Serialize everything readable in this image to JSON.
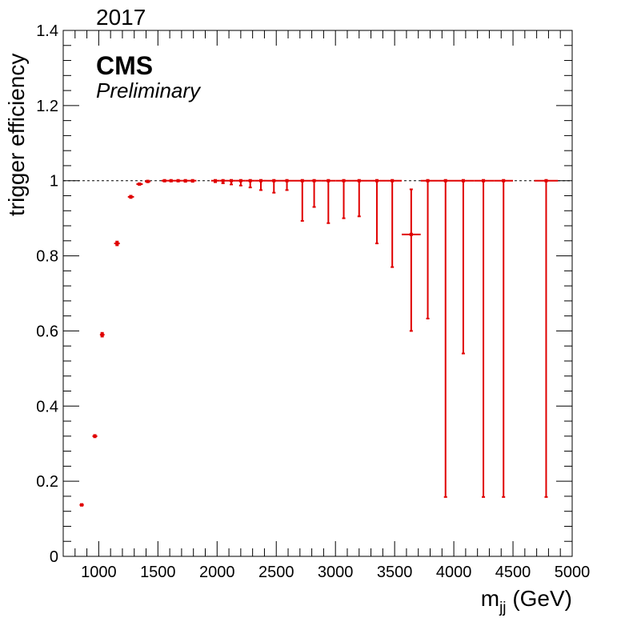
{
  "chart_data": {
    "type": "scatter",
    "title": "",
    "annotations": {
      "year": "2017",
      "experiment": "CMS",
      "status": "Preliminary"
    },
    "xlabel": "m",
    "xlabel_subscript": "jj",
    "xlabel_unit": "(GeV)",
    "ylabel": "trigger efficiency",
    "xlim": [
      700,
      5000
    ],
    "ylim": [
      0,
      1.4
    ],
    "xticks": [
      "1000",
      "1500",
      "2000",
      "2500",
      "3000",
      "3500",
      "4000",
      "4500",
      "5000"
    ],
    "yticks": [
      "0",
      "0.2",
      "0.4",
      "0.6",
      "0.8",
      "1",
      "1.2",
      "1.4"
    ],
    "reference_line": {
      "y": 1,
      "style": "dotted"
    },
    "colors": {
      "series": "#e00000",
      "reference": "#000000"
    },
    "series": [
      {
        "points": [
          {
            "x": 856,
            "xlo": 838,
            "xhi": 874,
            "y": 0.137,
            "ylo": 0.135,
            "yhi": 0.139
          },
          {
            "x": 967,
            "xlo": 947,
            "xhi": 988,
            "y": 0.32,
            "ylo": 0.317,
            "yhi": 0.323
          },
          {
            "x": 1029,
            "xlo": 1010,
            "xhi": 1049,
            "y": 0.59,
            "ylo": 0.585,
            "yhi": 0.595
          },
          {
            "x": 1155,
            "xlo": 1130,
            "xhi": 1178,
            "y": 0.833,
            "ylo": 0.828,
            "yhi": 0.838
          },
          {
            "x": 1271,
            "xlo": 1246,
            "xhi": 1298,
            "y": 0.957,
            "ylo": 0.954,
            "yhi": 0.96
          },
          {
            "x": 1344,
            "xlo": 1318,
            "xhi": 1372,
            "y": 0.991,
            "ylo": 0.989,
            "yhi": 0.993
          },
          {
            "x": 1414,
            "xlo": 1390,
            "xhi": 1438,
            "y": 0.998,
            "ylo": 0.996,
            "yhi": 1.0
          },
          {
            "x": 1556,
            "xlo": 1530,
            "xhi": 1582,
            "y": 1.0,
            "ylo": 0.998,
            "yhi": 1.0
          },
          {
            "x": 1611,
            "xlo": 1582,
            "xhi": 1640,
            "y": 1.0,
            "ylo": 0.998,
            "yhi": 1.0
          },
          {
            "x": 1671,
            "xlo": 1640,
            "xhi": 1702,
            "y": 1.0,
            "ylo": 0.998,
            "yhi": 1.0
          },
          {
            "x": 1732,
            "xlo": 1702,
            "xhi": 1762,
            "y": 1.0,
            "ylo": 0.997,
            "yhi": 1.0
          },
          {
            "x": 1793,
            "xlo": 1762,
            "xhi": 1825,
            "y": 1.0,
            "ylo": 0.997,
            "yhi": 1.0
          },
          {
            "x": 1985,
            "xlo": 1950,
            "xhi": 2020,
            "y": 1.0,
            "ylo": 0.996,
            "yhi": 1.0
          },
          {
            "x": 2050,
            "xlo": 2020,
            "xhi": 2080,
            "y": 1.0,
            "ylo": 0.993,
            "yhi": 1.0
          },
          {
            "x": 2120,
            "xlo": 2080,
            "xhi": 2160,
            "y": 1.0,
            "ylo": 0.99,
            "yhi": 1.0
          },
          {
            "x": 2200,
            "xlo": 2160,
            "xhi": 2240,
            "y": 1.0,
            "ylo": 0.987,
            "yhi": 1.0
          },
          {
            "x": 2280,
            "xlo": 2240,
            "xhi": 2320,
            "y": 1.0,
            "ylo": 0.982,
            "yhi": 1.0
          },
          {
            "x": 2370,
            "xlo": 2320,
            "xhi": 2420,
            "y": 1.0,
            "ylo": 0.975,
            "yhi": 1.0
          },
          {
            "x": 2480,
            "xlo": 2420,
            "xhi": 2540,
            "y": 1.0,
            "ylo": 0.968,
            "yhi": 1.0
          },
          {
            "x": 2590,
            "xlo": 2540,
            "xhi": 2650,
            "y": 1.0,
            "ylo": 0.975,
            "yhi": 1.0
          },
          {
            "x": 2720,
            "xlo": 2650,
            "xhi": 2790,
            "y": 1.0,
            "ylo": 0.893,
            "yhi": 1.0
          },
          {
            "x": 2820,
            "xlo": 2790,
            "xhi": 2880,
            "y": 1.0,
            "ylo": 0.93,
            "yhi": 1.0
          },
          {
            "x": 2940,
            "xlo": 2880,
            "xhi": 3000,
            "y": 1.0,
            "ylo": 0.887,
            "yhi": 1.0
          },
          {
            "x": 3070,
            "xlo": 3000,
            "xhi": 3140,
            "y": 1.0,
            "ylo": 0.9,
            "yhi": 1.0
          },
          {
            "x": 3200,
            "xlo": 3140,
            "xhi": 3270,
            "y": 1.0,
            "ylo": 0.905,
            "yhi": 1.0
          },
          {
            "x": 3350,
            "xlo": 3270,
            "xhi": 3430,
            "y": 1.0,
            "ylo": 0.833,
            "yhi": 1.0
          },
          {
            "x": 3480,
            "xlo": 3430,
            "xhi": 3560,
            "y": 1.0,
            "ylo": 0.77,
            "yhi": 1.0
          },
          {
            "x": 3640,
            "xlo": 3560,
            "xhi": 3720,
            "y": 0.857,
            "ylo": 0.6,
            "yhi": 0.977
          },
          {
            "x": 3780,
            "xlo": 3720,
            "xhi": 3870,
            "y": 1.0,
            "ylo": 0.633,
            "yhi": 1.0
          },
          {
            "x": 3930,
            "xlo": 3870,
            "xhi": 4000,
            "y": 1.0,
            "ylo": 0.158,
            "yhi": 1.0
          },
          {
            "x": 4080,
            "xlo": 4000,
            "xhi": 4170,
            "y": 1.0,
            "ylo": 0.54,
            "yhi": 1.0
          },
          {
            "x": 4250,
            "xlo": 4170,
            "xhi": 4340,
            "y": 1.0,
            "ylo": 0.158,
            "yhi": 1.0
          },
          {
            "x": 4420,
            "xlo": 4340,
            "xhi": 4500,
            "y": 1.0,
            "ylo": 0.158,
            "yhi": 1.0
          },
          {
            "x": 4780,
            "xlo": 4680,
            "xhi": 4880,
            "y": 1.0,
            "ylo": 0.158,
            "yhi": 1.0
          }
        ]
      }
    ]
  }
}
